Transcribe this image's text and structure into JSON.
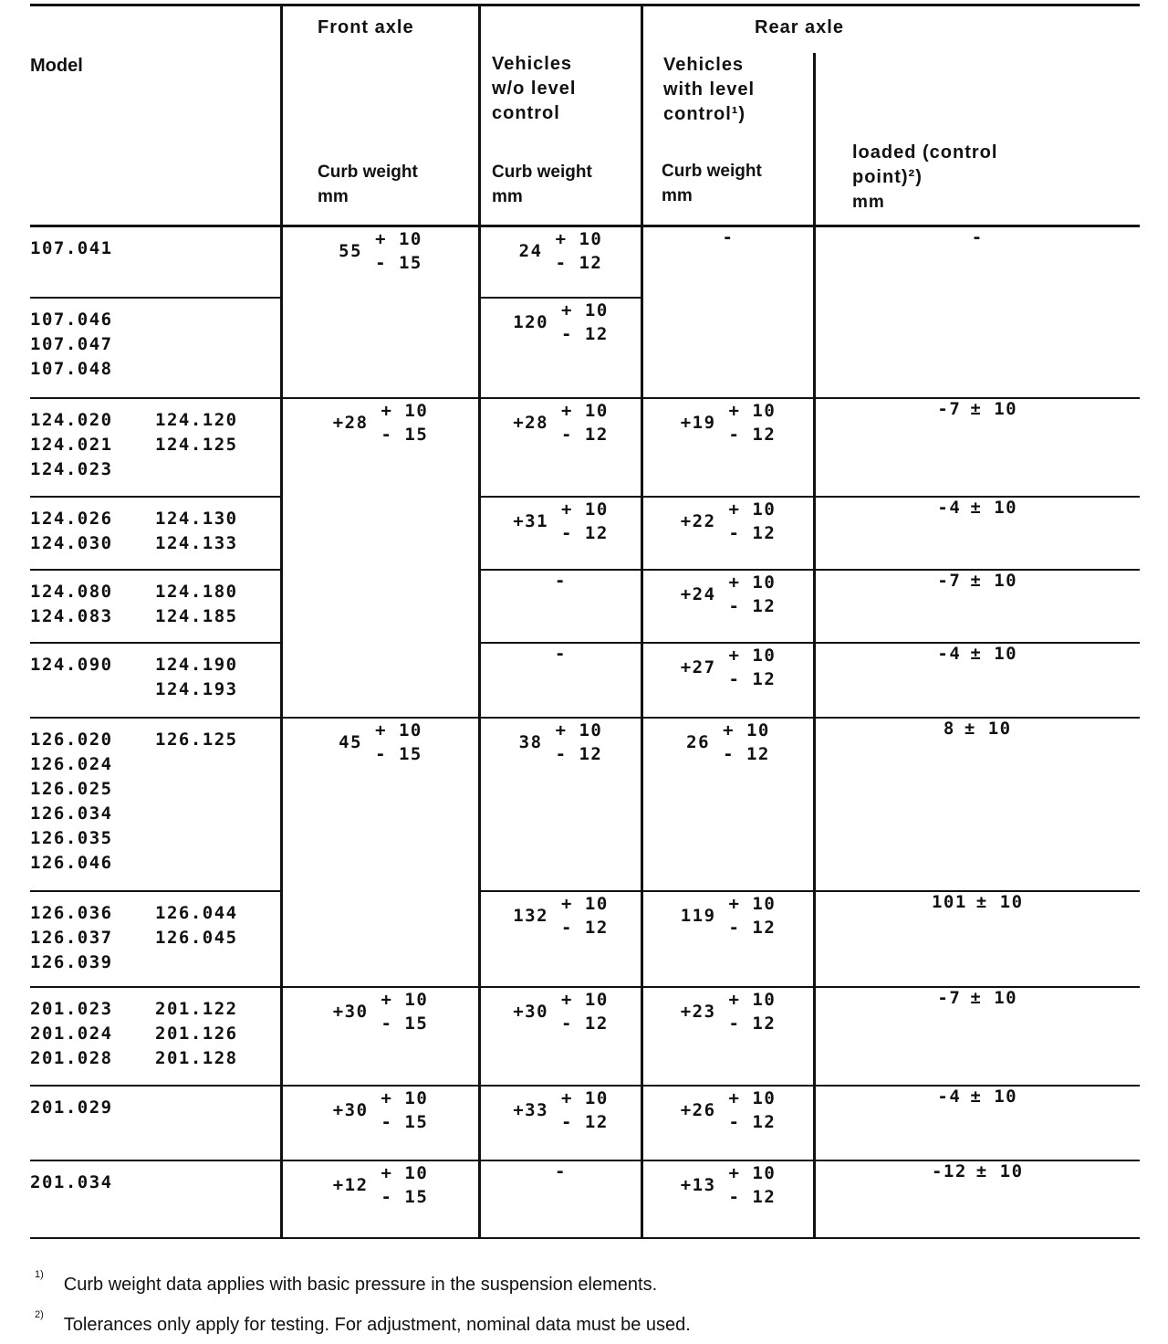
{
  "header": {
    "model": "Model",
    "front_axle": "Front axle",
    "rear_axle": "Rear axle",
    "front_sub": [
      "Curb weight",
      "mm"
    ],
    "wo_title": [
      "Vehicles",
      "w/o level",
      "control"
    ],
    "wo_sub": [
      "Curb weight",
      "mm"
    ],
    "with_title": [
      "Vehicles",
      "with level",
      "control¹)"
    ],
    "with_sub": [
      "Curb weight",
      "mm"
    ],
    "loaded_title": [
      "loaded (control",
      "point)²)",
      "mm"
    ]
  },
  "rows": [
    {
      "models": [
        [
          "107.041"
        ],
        []
      ],
      "front": {
        "v": "55",
        "tol": [
          "+ 10",
          "- 15"
        ],
        "rowspan": 2
      },
      "wo": {
        "v": "24",
        "tol": [
          "+ 10",
          "- 12"
        ]
      },
      "with": {
        "v": "-",
        "rowspan": 2
      },
      "loaded": {
        "v": "-",
        "rowspan": 2
      }
    },
    {
      "models": [
        [
          "107.046",
          "107.047",
          "107.048"
        ],
        []
      ],
      "wo": {
        "v": "120",
        "tol": [
          "+ 10",
          "- 12"
        ]
      }
    },
    {
      "models": [
        [
          "124.020",
          "124.021",
          "124.023"
        ],
        [
          "124.120",
          "124.125"
        ]
      ],
      "front": {
        "v": "+28",
        "tol": [
          "+ 10",
          "- 15"
        ],
        "rowspan": 4
      },
      "wo": {
        "v": "+28",
        "tol": [
          "+ 10",
          "- 12"
        ]
      },
      "with": {
        "v": "+19",
        "tol": [
          "+ 10",
          "- 12"
        ]
      },
      "loaded": {
        "v": "-7",
        "pm": "± 10"
      }
    },
    {
      "models": [
        [
          "124.026",
          "124.030"
        ],
        [
          "124.130",
          "124.133"
        ]
      ],
      "wo": {
        "v": "+31",
        "tol": [
          "+ 10",
          "- 12"
        ]
      },
      "with": {
        "v": "+22",
        "tol": [
          "+ 10",
          "- 12"
        ]
      },
      "loaded": {
        "v": "-4",
        "pm": "± 10"
      }
    },
    {
      "models": [
        [
          "124.080",
          "124.083"
        ],
        [
          "124.180",
          "124.185"
        ]
      ],
      "wo": {
        "v": "-"
      },
      "with": {
        "v": "+24",
        "tol": [
          "+ 10",
          "- 12"
        ]
      },
      "loaded": {
        "v": "-7",
        "pm": "± 10"
      }
    },
    {
      "models": [
        [
          "124.090"
        ],
        [
          "124.190",
          "124.193"
        ]
      ],
      "wo": {
        "v": "-"
      },
      "with": {
        "v": "+27",
        "tol": [
          "+ 10",
          "- 12"
        ]
      },
      "loaded": {
        "v": "-4",
        "pm": "± 10"
      }
    },
    {
      "models": [
        [
          "126.020",
          "126.024",
          "126.025",
          "126.034",
          "126.035",
          "126.046"
        ],
        [
          "126.125"
        ]
      ],
      "front": {
        "v": "45",
        "tol": [
          "+ 10",
          "- 15"
        ],
        "rowspan": 2
      },
      "wo": {
        "v": "38",
        "tol": [
          "+ 10",
          "- 12"
        ]
      },
      "with": {
        "v": "26",
        "tol": [
          "+ 10",
          "- 12"
        ]
      },
      "loaded": {
        "v": "8",
        "pm": "± 10"
      }
    },
    {
      "models": [
        [
          "126.036",
          "126.037",
          "126.039"
        ],
        [
          "126.044",
          "126.045"
        ]
      ],
      "wo": {
        "v": "132",
        "tol": [
          "+ 10",
          "- 12"
        ]
      },
      "with": {
        "v": "119",
        "tol": [
          "+ 10",
          "- 12"
        ]
      },
      "loaded": {
        "v": "101",
        "pm": "± 10"
      }
    },
    {
      "models": [
        [
          "201.023",
          "201.024",
          "201.028"
        ],
        [
          "201.122",
          "201.126",
          "201.128"
        ]
      ],
      "front": {
        "v": "+30",
        "tol": [
          "+ 10",
          "- 15"
        ]
      },
      "wo": {
        "v": "+30",
        "tol": [
          "+ 10",
          "- 12"
        ]
      },
      "with": {
        "v": "+23",
        "tol": [
          "+ 10",
          "- 12"
        ]
      },
      "loaded": {
        "v": "-7",
        "pm": "± 10"
      }
    },
    {
      "models": [
        [
          "201.029"
        ],
        []
      ],
      "front": {
        "v": "+30",
        "tol": [
          "+ 10",
          "- 15"
        ]
      },
      "wo": {
        "v": "+33",
        "tol": [
          "+ 10",
          "- 12"
        ]
      },
      "with": {
        "v": "+26",
        "tol": [
          "+ 10",
          "- 12"
        ]
      },
      "loaded": {
        "v": "-4",
        "pm": "± 10"
      }
    },
    {
      "models": [
        [
          "201.034"
        ],
        []
      ],
      "front": {
        "v": "+12",
        "tol": [
          "+ 10",
          "- 15"
        ]
      },
      "wo": {
        "v": "-"
      },
      "with": {
        "v": "+13",
        "tol": [
          "+ 10",
          "- 12"
        ]
      },
      "loaded": {
        "v": "-12",
        "pm": "± 10"
      }
    }
  ],
  "footnotes": [
    {
      "mark": "1)",
      "text": "Curb weight data applies with basic pressure in the suspension elements."
    },
    {
      "mark": "2)",
      "text": "Tolerances only apply for testing. For adjustment, nominal data must be used."
    }
  ]
}
